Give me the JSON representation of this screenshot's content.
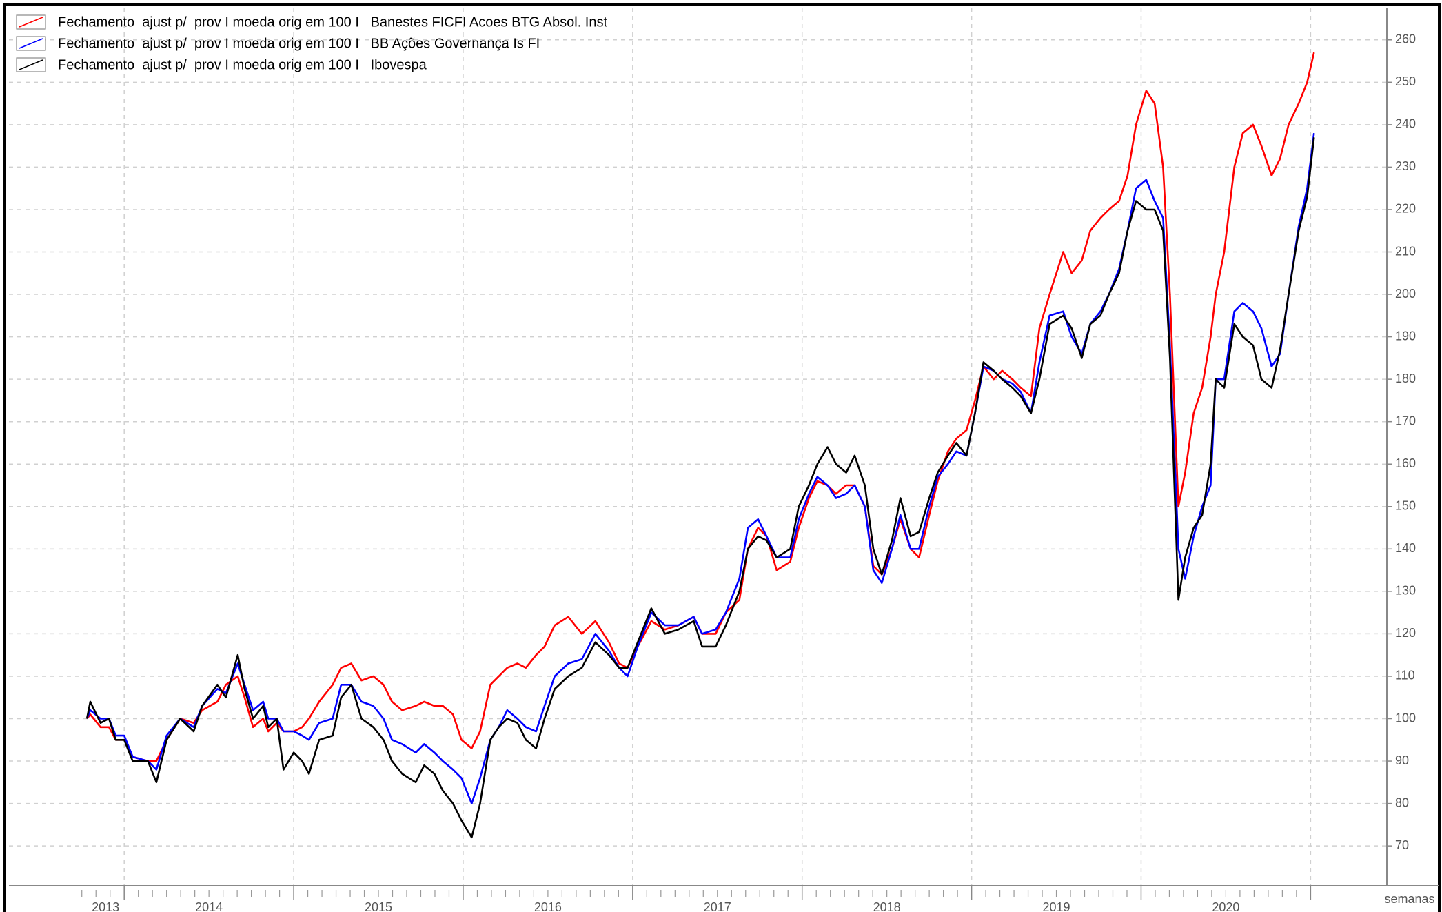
{
  "chart_data": {
    "type": "line",
    "x_label": "semanas",
    "x": [
      2013.78,
      2013.8,
      2013.86,
      2013.91,
      2013.95,
      2014.0,
      2014.05,
      2014.14,
      2014.19,
      2014.25,
      2014.33,
      2014.41,
      2014.46,
      2014.55,
      2014.6,
      2014.67,
      2014.71,
      2014.76,
      2014.82,
      2014.85,
      2014.9,
      2014.94,
      2015.0,
      2015.05,
      2015.09,
      2015.15,
      2015.23,
      2015.28,
      2015.34,
      2015.4,
      2015.47,
      2015.53,
      2015.58,
      2015.64,
      2015.72,
      2015.77,
      2015.83,
      2015.88,
      2015.94,
      2015.99,
      2016.05,
      2016.1,
      2016.16,
      2016.21,
      2016.26,
      2016.32,
      2016.37,
      2016.43,
      2016.48,
      2016.54,
      2016.62,
      2016.7,
      2016.78,
      2016.86,
      2016.92,
      2016.97,
      2017.03,
      2017.11,
      2017.19,
      2017.27,
      2017.36,
      2017.41,
      2017.49,
      2017.55,
      2017.63,
      2017.68,
      2017.74,
      2017.79,
      2017.85,
      2017.93,
      2017.98,
      2018.04,
      2018.09,
      2018.15,
      2018.2,
      2018.26,
      2018.31,
      2018.37,
      2018.42,
      2018.47,
      2018.53,
      2018.58,
      2018.64,
      2018.69,
      2018.75,
      2018.8,
      2018.86,
      2018.91,
      2018.97,
      2019.02,
      2019.07,
      2019.13,
      2019.18,
      2019.24,
      2019.29,
      2019.35,
      2019.4,
      2019.46,
      2019.54,
      2019.59,
      2019.65,
      2019.7,
      2019.76,
      2019.81,
      2019.87,
      2019.92,
      2019.97,
      2020.03,
      2020.08,
      2020.13,
      2020.17,
      2020.22,
      2020.26,
      2020.31,
      2020.36,
      2020.41,
      2020.44,
      2020.49,
      2020.55,
      2020.6,
      2020.66,
      2020.71,
      2020.77,
      2020.82,
      2020.87,
      2020.93,
      2020.98,
      2021.02
    ],
    "series": [
      {
        "name": "Fechamento  ajust p/  prov I moeda orig em 100 I   Banestes FICFI Acoes BTG Absol. Inst",
        "color": "#ff0000",
        "values": [
          100,
          101,
          98,
          98,
          95,
          95,
          91,
          90,
          90,
          95,
          100,
          99,
          102,
          104,
          108,
          110,
          105,
          98,
          100,
          97,
          99,
          97,
          97,
          98,
          100,
          104,
          108,
          112,
          113,
          109,
          110,
          108,
          104,
          102,
          103,
          104,
          103,
          103,
          101,
          95,
          93,
          97,
          108,
          110,
          112,
          113,
          112,
          115,
          117,
          122,
          124,
          120,
          123,
          118,
          113,
          112,
          117,
          123,
          121,
          122,
          124,
          120,
          120,
          125,
          128,
          140,
          145,
          143,
          135,
          137,
          145,
          152,
          156,
          155,
          153,
          155,
          155,
          150,
          136,
          134,
          140,
          147,
          140,
          138,
          148,
          156,
          163,
          166,
          168,
          175,
          183,
          180,
          182,
          180,
          178,
          176,
          192,
          200,
          210,
          205,
          208,
          215,
          218,
          220,
          222,
          228,
          240,
          248,
          245,
          230,
          200,
          150,
          158,
          172,
          178,
          190,
          200,
          210,
          230,
          238,
          240,
          235,
          228,
          232,
          240,
          245,
          250,
          257
        ]
      },
      {
        "name": "Fechamento  ajust p/  prov I moeda orig em 100 I   BB Ações Governança Is FI",
        "color": "#0000ff",
        "values": [
          100,
          102,
          100,
          100,
          96,
          96,
          91,
          90,
          88,
          96,
          100,
          98,
          103,
          107,
          106,
          113,
          108,
          102,
          104,
          100,
          100,
          97,
          97,
          96,
          95,
          99,
          100,
          108,
          108,
          104,
          103,
          100,
          95,
          94,
          92,
          94,
          92,
          90,
          88,
          86,
          80,
          86,
          95,
          98,
          102,
          100,
          98,
          97,
          103,
          110,
          113,
          114,
          120,
          116,
          112,
          110,
          117,
          125,
          122,
          122,
          124,
          120,
          121,
          125,
          133,
          145,
          147,
          143,
          138,
          138,
          147,
          153,
          157,
          155,
          152,
          153,
          155,
          150,
          135,
          132,
          140,
          148,
          140,
          140,
          150,
          157,
          160,
          163,
          162,
          172,
          183,
          182,
          180,
          179,
          177,
          172,
          184,
          195,
          196,
          190,
          186,
          193,
          196,
          200,
          206,
          215,
          225,
          227,
          222,
          218,
          188,
          140,
          133,
          143,
          150,
          155,
          180,
          180,
          196,
          198,
          196,
          192,
          183,
          186,
          200,
          216,
          225,
          238
        ]
      },
      {
        "name": "Fechamento  ajust p/  prov I moeda orig em 100 I   Ibovespa",
        "color": "#000000",
        "values": [
          100,
          104,
          99,
          100,
          95,
          95,
          90,
          90,
          85,
          95,
          100,
          97,
          103,
          108,
          105,
          115,
          107,
          100,
          103,
          98,
          100,
          88,
          92,
          90,
          87,
          95,
          96,
          105,
          108,
          100,
          98,
          95,
          90,
          87,
          85,
          89,
          87,
          83,
          80,
          76,
          72,
          80,
          95,
          98,
          100,
          99,
          95,
          93,
          100,
          107,
          110,
          112,
          118,
          115,
          112,
          112,
          118,
          126,
          120,
          121,
          123,
          117,
          117,
          122,
          130,
          140,
          143,
          142,
          138,
          140,
          150,
          155,
          160,
          164,
          160,
          158,
          162,
          155,
          140,
          134,
          142,
          152,
          143,
          144,
          152,
          158,
          162,
          165,
          162,
          172,
          184,
          182,
          180,
          178,
          176,
          172,
          180,
          193,
          195,
          192,
          185,
          193,
          195,
          200,
          205,
          215,
          222,
          220,
          220,
          215,
          185,
          128,
          138,
          145,
          148,
          160,
          180,
          178,
          193,
          190,
          188,
          180,
          178,
          187,
          200,
          215,
          223,
          237
        ]
      }
    ],
    "xlim": [
      2013.32,
      2021.45
    ],
    "xticks": [
      2013,
      2014,
      2015,
      2016,
      2017,
      2018,
      2019,
      2020
    ],
    "ylim": [
      60.6,
      267.6
    ],
    "yticks": [
      70,
      80,
      90,
      100,
      110,
      120,
      130,
      140,
      150,
      160,
      170,
      180,
      190,
      200,
      210,
      220,
      230,
      240,
      250,
      260
    ],
    "grid": true,
    "legend": "top-left"
  }
}
